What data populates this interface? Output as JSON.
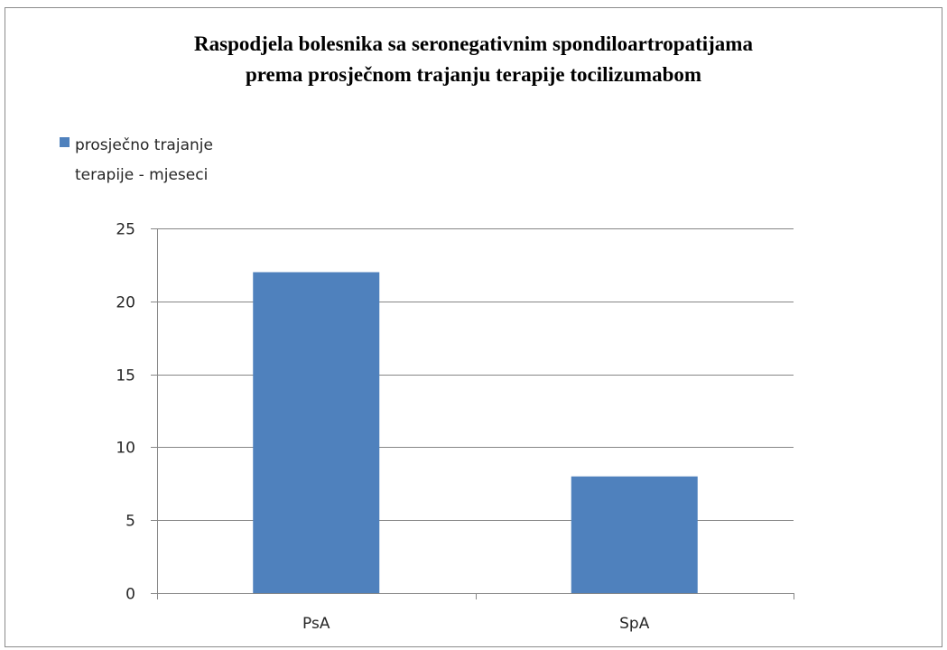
{
  "chart_data": {
    "type": "bar",
    "title_lines": [
      "Raspodjela bolesnika sa seronegativnim spondiloartropatijama",
      "prema prosječnom trajanju terapije tocilizumabom"
    ],
    "categories": [
      "PsA",
      "SpA"
    ],
    "series": [
      {
        "name_lines": [
          "prosječno trajanje",
          "terapije - mjeseci"
        ],
        "values": [
          22,
          8
        ],
        "color": "#4f81bd"
      }
    ],
    "yticks": [
      "0",
      "5",
      "10",
      "15",
      "20",
      "25"
    ],
    "ylim": [
      0,
      25
    ],
    "grid": true,
    "legend_position": "top-left"
  }
}
